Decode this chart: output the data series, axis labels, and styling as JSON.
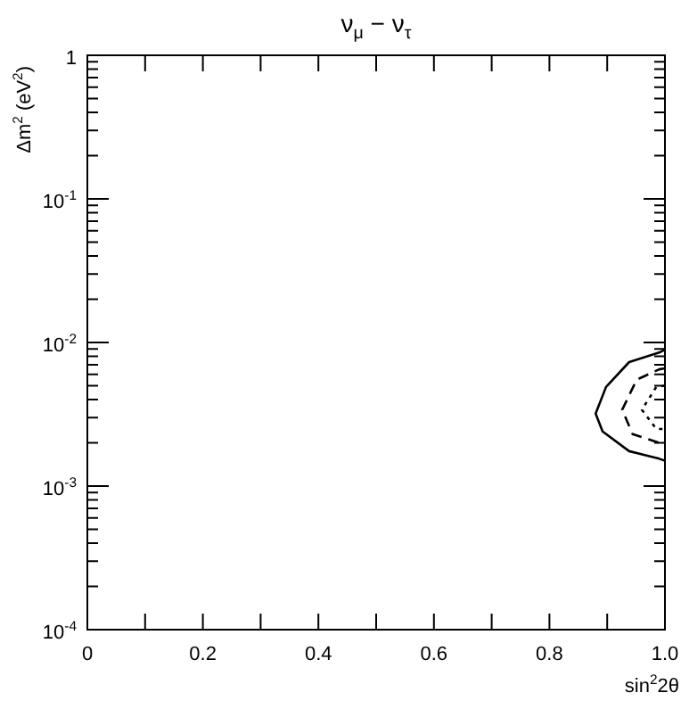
{
  "chart_data": {
    "type": "line",
    "title": "ν$_{μ}$ − ν$_{τ}$",
    "xlabel": "sin$^{2}$2θ",
    "ylabel": "Δm$^{2}$ (eV$^{2}$)",
    "log": "y",
    "grid": false,
    "legend": false,
    "marker": "none",
    "xlim": [
      0,
      1
    ],
    "ylim": [
      0.0001,
      1
    ],
    "xticks": [
      {
        "value": 0,
        "label": "0"
      },
      {
        "value": 0.1,
        "label": null
      },
      {
        "value": 0.2,
        "label": "0.2"
      },
      {
        "value": 0.3,
        "label": null
      },
      {
        "value": 0.4,
        "label": "0.4"
      },
      {
        "value": 0.5,
        "label": null
      },
      {
        "value": 0.6,
        "label": "0.6"
      },
      {
        "value": 0.7,
        "label": null
      },
      {
        "value": 0.8,
        "label": "0.8"
      },
      {
        "value": 0.9,
        "label": null
      },
      {
        "value": 1,
        "label": "1.0"
      }
    ],
    "yticks": [
      {
        "value": 0.0001,
        "label": "10$^{-4}$"
      },
      {
        "value": 0.0002,
        "label": null
      },
      {
        "value": 0.0003,
        "label": null
      },
      {
        "value": 0.0004,
        "label": null
      },
      {
        "value": 0.0005,
        "label": null
      },
      {
        "value": 0.0006,
        "label": null
      },
      {
        "value": 0.0007,
        "label": null
      },
      {
        "value": 0.0008,
        "label": null
      },
      {
        "value": 0.0009,
        "label": null
      },
      {
        "value": 0.001,
        "label": "10$^{-3}$"
      },
      {
        "value": 0.002,
        "label": null
      },
      {
        "value": 0.003,
        "label": null
      },
      {
        "value": 0.004,
        "label": null
      },
      {
        "value": 0.005,
        "label": null
      },
      {
        "value": 0.006,
        "label": null
      },
      {
        "value": 0.007,
        "label": null
      },
      {
        "value": 0.008,
        "label": null
      },
      {
        "value": 0.009,
        "label": null
      },
      {
        "value": 0.01,
        "label": "10$^{-2}$"
      },
      {
        "value": 0.02,
        "label": null
      },
      {
        "value": 0.03,
        "label": null
      },
      {
        "value": 0.04,
        "label": null
      },
      {
        "value": 0.05,
        "label": null
      },
      {
        "value": 0.06,
        "label": null
      },
      {
        "value": 0.07,
        "label": null
      },
      {
        "value": 0.08,
        "label": null
      },
      {
        "value": 0.09,
        "label": null
      },
      {
        "value": 0.1,
        "label": "10$^{-1}$"
      },
      {
        "value": 0.2,
        "label": null
      },
      {
        "value": 0.3,
        "label": null
      },
      {
        "value": 0.4,
        "label": null
      },
      {
        "value": 0.5,
        "label": null
      },
      {
        "value": 0.6,
        "label": null
      },
      {
        "value": 0.7,
        "label": null
      },
      {
        "value": 0.8,
        "label": null
      },
      {
        "value": 0.9,
        "label": null
      },
      {
        "value": 1,
        "label": "1"
      }
    ],
    "series": [
      {
        "color": "#000000",
        "line_style": "solid",
        "x": [
          1,
          0.99,
          0.938,
          0.898,
          0.88,
          0.892,
          0.938,
          0.99,
          1
        ],
        "values": [
          0.0089,
          0.0085,
          0.0073,
          0.0049,
          0.0032,
          0.0024,
          0.00175,
          0.00155,
          0.0015
        ]
      },
      {
        "color": "#000000",
        "line_style": "dashed",
        "x": [
          1,
          0.99,
          0.951,
          0.926,
          0.944,
          0.99,
          1
        ],
        "values": [
          0.0066,
          0.0065,
          0.0055,
          0.0034,
          0.0023,
          0.002,
          0.002
        ]
      },
      {
        "color": "#000000",
        "line_style": "dotted",
        "x": [
          1,
          0.985,
          0.96,
          0.985,
          1
        ],
        "values": [
          0.005,
          0.0049,
          0.0034,
          0.0025,
          0.0025
        ]
      }
    ]
  }
}
